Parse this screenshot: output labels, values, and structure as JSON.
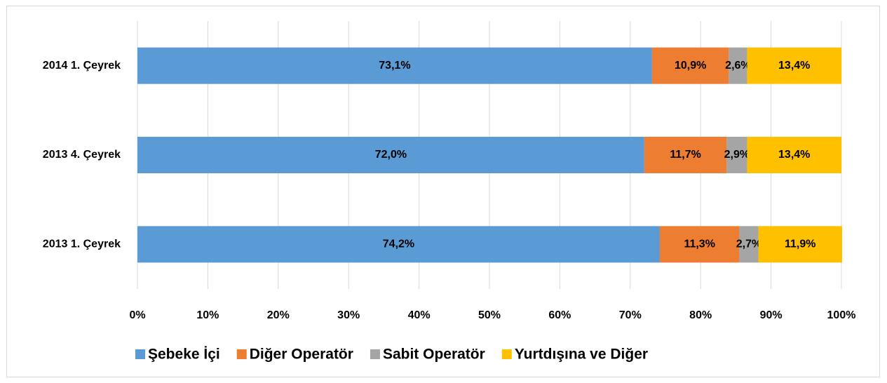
{
  "chart_data": {
    "type": "stacked-bar-horizontal",
    "categories": [
      "2014 1. Çeyrek",
      "2013 4. Çeyrek",
      "2013 1. Çeyrek"
    ],
    "series": [
      {
        "name": "Şebeke İçi",
        "color": "#5b9bd5",
        "values": [
          73.1,
          72.0,
          74.2
        ],
        "value_labels": [
          "73,1%",
          "72,0%",
          "74,2%"
        ]
      },
      {
        "name": "Diğer Operatör",
        "color": "#ed7d31",
        "values": [
          10.9,
          11.7,
          11.3
        ],
        "value_labels": [
          "10,9%",
          "11,7%",
          "11,3%"
        ]
      },
      {
        "name": "Sabit Operatör",
        "color": "#a5a5a5",
        "values": [
          2.6,
          2.9,
          2.7
        ],
        "value_labels": [
          "2,6%",
          "2,9%",
          "2,7%"
        ]
      },
      {
        "name": "Yurtdışına ve Diğer",
        "color": "#ffc000",
        "values": [
          13.4,
          13.4,
          11.9
        ],
        "value_labels": [
          "13,4%",
          "13,4%",
          "11,9%"
        ]
      }
    ],
    "xlim": [
      0,
      100
    ],
    "xticks": [
      {
        "value": 0,
        "label": "0%"
      },
      {
        "value": 10,
        "label": "10%"
      },
      {
        "value": 20,
        "label": "20%"
      },
      {
        "value": 30,
        "label": "30%"
      },
      {
        "value": 40,
        "label": "40%"
      },
      {
        "value": 50,
        "label": "50%"
      },
      {
        "value": 60,
        "label": "60%"
      },
      {
        "value": 70,
        "label": "70%"
      },
      {
        "value": 80,
        "label": "80%"
      },
      {
        "value": 90,
        "label": "90%"
      },
      {
        "value": 100,
        "label": "100%"
      }
    ],
    "grid": true,
    "legend": "bottom"
  }
}
